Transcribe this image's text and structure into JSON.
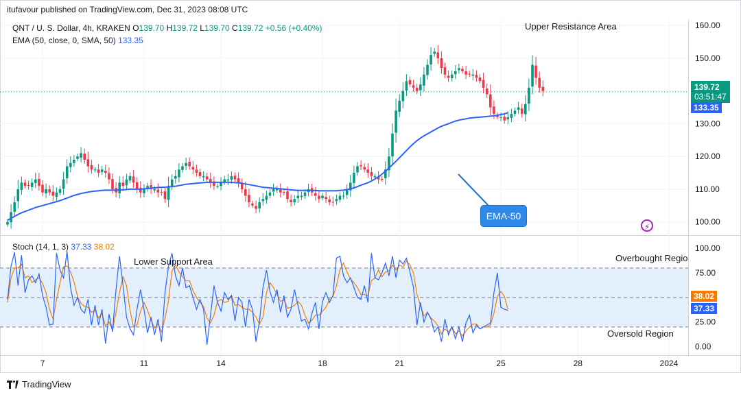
{
  "header": {
    "publisher": "itufavour published on TradingView.com, Dec 31, 2023 08:08 UTC"
  },
  "symbol_line": {
    "symbol": "QNT / U. S. Dollar, 4h, KRAKEN",
    "o_label": "O",
    "o": "139.70",
    "h_label": "H",
    "h": "139.72",
    "l_label": "L",
    "l": "139.70",
    "c_label": "C",
    "c": "139.72",
    "change": "+0.56 (+0.40%)"
  },
  "ema_line": {
    "label": "EMA (50, close, 0, SMA, 50)",
    "value": "133.35"
  },
  "stoch_line": {
    "label": "Stoch (14, 1, 3)",
    "k": "37.33",
    "d": "38.02"
  },
  "price_tag": {
    "price": "139.72",
    "countdown": "03:51:47"
  },
  "ema_tag": "133.35",
  "stoch_tags": {
    "d": "38.02",
    "k": "37.33"
  },
  "annotations": {
    "upper": "Upper Resistance Area",
    "lower": "Lower Support Area",
    "overbought": "Overbought Regio",
    "oversold": "Oversold Region",
    "ema_callout": "EMA-50"
  },
  "footer": {
    "brand": "TradingView"
  },
  "colors": {
    "up": "#089981",
    "down": "#f23645",
    "ema": "#2962ff",
    "stoch_k": "#2962ff",
    "stoch_d": "#f57c00",
    "band": "#e3f0fc"
  },
  "chart_data": [
    {
      "type": "candlestick",
      "title": "QNT / U. S. Dollar, 4h, KRAKEN",
      "x_ticks": [
        "7",
        "11",
        "14",
        "18",
        "21",
        "25",
        "28",
        "2024"
      ],
      "x_tick_index": [
        10,
        39,
        61,
        90,
        112,
        141,
        163,
        189
      ],
      "y_ticks": [
        100,
        110,
        120,
        130,
        140,
        150,
        160
      ],
      "y_tick_labels": [
        "100.00",
        "110.00",
        "120.00",
        "130.00",
        "140.00",
        "150.00",
        "160.00"
      ],
      "ylim": [
        97,
        161.5
      ],
      "last_price": 139.72,
      "closes": [
        100,
        103,
        106,
        110,
        112,
        111,
        111,
        112,
        113,
        111,
        109,
        110,
        109,
        108,
        109,
        110,
        113,
        117,
        118,
        119,
        120,
        121,
        119,
        117,
        116,
        116,
        115,
        116,
        115,
        113,
        110,
        109,
        112,
        111,
        113,
        114,
        112,
        110,
        109,
        110,
        111,
        110,
        110,
        109,
        109,
        107,
        111,
        113,
        114,
        116,
        117,
        118,
        117,
        116,
        115,
        114,
        114,
        113,
        112,
        111,
        111,
        112,
        113,
        113,
        114,
        113,
        112,
        110,
        108,
        106,
        105,
        104,
        106,
        107,
        108,
        109,
        110,
        110,
        109,
        109,
        107,
        106,
        107,
        108,
        108,
        109,
        110,
        109,
        108,
        107,
        108,
        107,
        106,
        106,
        107,
        108,
        108,
        110,
        112,
        115,
        117,
        117,
        116,
        115,
        114,
        114,
        113,
        113,
        116,
        120,
        127,
        134,
        137,
        140,
        143,
        142,
        141,
        140,
        142,
        145,
        148,
        151,
        152,
        150,
        147,
        145,
        144,
        145,
        146,
        147,
        146,
        145,
        145,
        145,
        144,
        143,
        141,
        139,
        135,
        133,
        132,
        132,
        131,
        132,
        133,
        134,
        135,
        133,
        136,
        141,
        148,
        144,
        141,
        140
      ]
    },
    {
      "type": "line",
      "name": "EMA (50, close, 0, SMA, 50)",
      "values": [
        100.5,
        101.1,
        101.7,
        102.3,
        102.8,
        103.2,
        103.6,
        104.0,
        104.4,
        104.7,
        105.0,
        105.3,
        105.6,
        105.9,
        106.2,
        106.5,
        106.9,
        107.3,
        107.7,
        108.1,
        108.4,
        108.7,
        108.9,
        109.1,
        109.3,
        109.4,
        109.5,
        109.6,
        109.7,
        109.7,
        109.7,
        109.7,
        109.8,
        109.8,
        109.9,
        110.0,
        110.0,
        110.0,
        110.0,
        110.1,
        110.2,
        110.3,
        110.4,
        110.5,
        110.6,
        110.6,
        110.7,
        110.8,
        110.9,
        111.1,
        111.3,
        111.5,
        111.6,
        111.7,
        111.8,
        111.9,
        112.0,
        112.1,
        112.1,
        112.1,
        112.1,
        112.1,
        112.1,
        112.1,
        112.1,
        112.0,
        111.9,
        111.8,
        111.6,
        111.4,
        111.2,
        111.0,
        110.8,
        110.6,
        110.5,
        110.4,
        110.3,
        110.2,
        110.1,
        110.0,
        109.9,
        109.8,
        109.7,
        109.6,
        109.6,
        109.6,
        109.6,
        109.6,
        109.6,
        109.5,
        109.5,
        109.5,
        109.5,
        109.5,
        109.5,
        109.6,
        109.7,
        109.9,
        110.1,
        110.4,
        110.8,
        111.2,
        111.6,
        112.0,
        112.5,
        113.1,
        113.8,
        114.6,
        115.5,
        116.5,
        117.5,
        118.5,
        119.6,
        120.7,
        121.8,
        122.9,
        123.9,
        124.8,
        125.6,
        126.3,
        126.9,
        127.5,
        128.1,
        128.7,
        129.2,
        129.6,
        130.0,
        130.4,
        130.8,
        131.1,
        131.3,
        131.5,
        131.7,
        131.8,
        131.9,
        132.0,
        132.1,
        132.2,
        132.3,
        132.4,
        132.6,
        132.8,
        133.0,
        133.35
      ]
    },
    {
      "type": "line",
      "title": "Stoch (14, 1, 3)",
      "y_ticks": [
        0,
        25,
        50,
        75,
        100
      ],
      "y_tick_labels": [
        "0.00",
        "25.00",
        "50.00",
        "75.00",
        "100.00"
      ],
      "ylim": [
        -8,
        105
      ],
      "band": [
        20,
        80
      ],
      "series": [
        {
          "name": "%K",
          "values": [
            48,
            82,
            96,
            62,
            93,
            55,
            68,
            72,
            65,
            74,
            52,
            40,
            22,
            23,
            95,
            78,
            70,
            97,
            60,
            42,
            50,
            38,
            34,
            48,
            22,
            42,
            22,
            38,
            3,
            33,
            15,
            58,
            92,
            62,
            30,
            18,
            12,
            38,
            58,
            38,
            14,
            30,
            12,
            28,
            5,
            55,
            82,
            95,
            72,
            62,
            80,
            60,
            62,
            50,
            38,
            48,
            38,
            2,
            32,
            62,
            45,
            36,
            55,
            48,
            52,
            26,
            50,
            45,
            20,
            48,
            38,
            5,
            26,
            60,
            78,
            56,
            45,
            58,
            35,
            52,
            30,
            38,
            58,
            42,
            26,
            28,
            18,
            34,
            45,
            18,
            46,
            55,
            45,
            52,
            90,
            92,
            72,
            65,
            70,
            60,
            50,
            48,
            62,
            45,
            95,
            70,
            68,
            75,
            85,
            72,
            92,
            70,
            88,
            84,
            90,
            76,
            60,
            22,
            45,
            25,
            35,
            28,
            15,
            20,
            5,
            28,
            12,
            20,
            8,
            20,
            5,
            24,
            32,
            14,
            22,
            18,
            20,
            22,
            24,
            55,
            75,
            40,
            38,
            37
          ]
        },
        {
          "name": "%D",
          "values": [
            45,
            70,
            80,
            80,
            84,
            70,
            72,
            65,
            68,
            70,
            64,
            55,
            38,
            28,
            48,
            65,
            81,
            82,
            76,
            66,
            51,
            44,
            41,
            40,
            35,
            37,
            29,
            34,
            21,
            25,
            17,
            35,
            55,
            71,
            62,
            37,
            20,
            22,
            36,
            45,
            37,
            27,
            19,
            23,
            15,
            29,
            47,
            77,
            83,
            76,
            71,
            67,
            67,
            57,
            50,
            45,
            41,
            29,
            24,
            32,
            46,
            48,
            45,
            46,
            52,
            42,
            43,
            40,
            38,
            38,
            35,
            30,
            23,
            30,
            55,
            65,
            60,
            53,
            46,
            48,
            39,
            40,
            42,
            46,
            42,
            32,
            24,
            27,
            32,
            32,
            36,
            40,
            48,
            51,
            62,
            78,
            85,
            76,
            69,
            65,
            60,
            53,
            53,
            52,
            67,
            70,
            78,
            71,
            76,
            77,
            83,
            78,
            83,
            81,
            87,
            83,
            75,
            53,
            42,
            31,
            35,
            29,
            26,
            21,
            13,
            18,
            15,
            20,
            13,
            16,
            11,
            16,
            20,
            23,
            23,
            18,
            20,
            20,
            22,
            34,
            51,
            56,
            51,
            38
          ]
        }
      ]
    }
  ]
}
